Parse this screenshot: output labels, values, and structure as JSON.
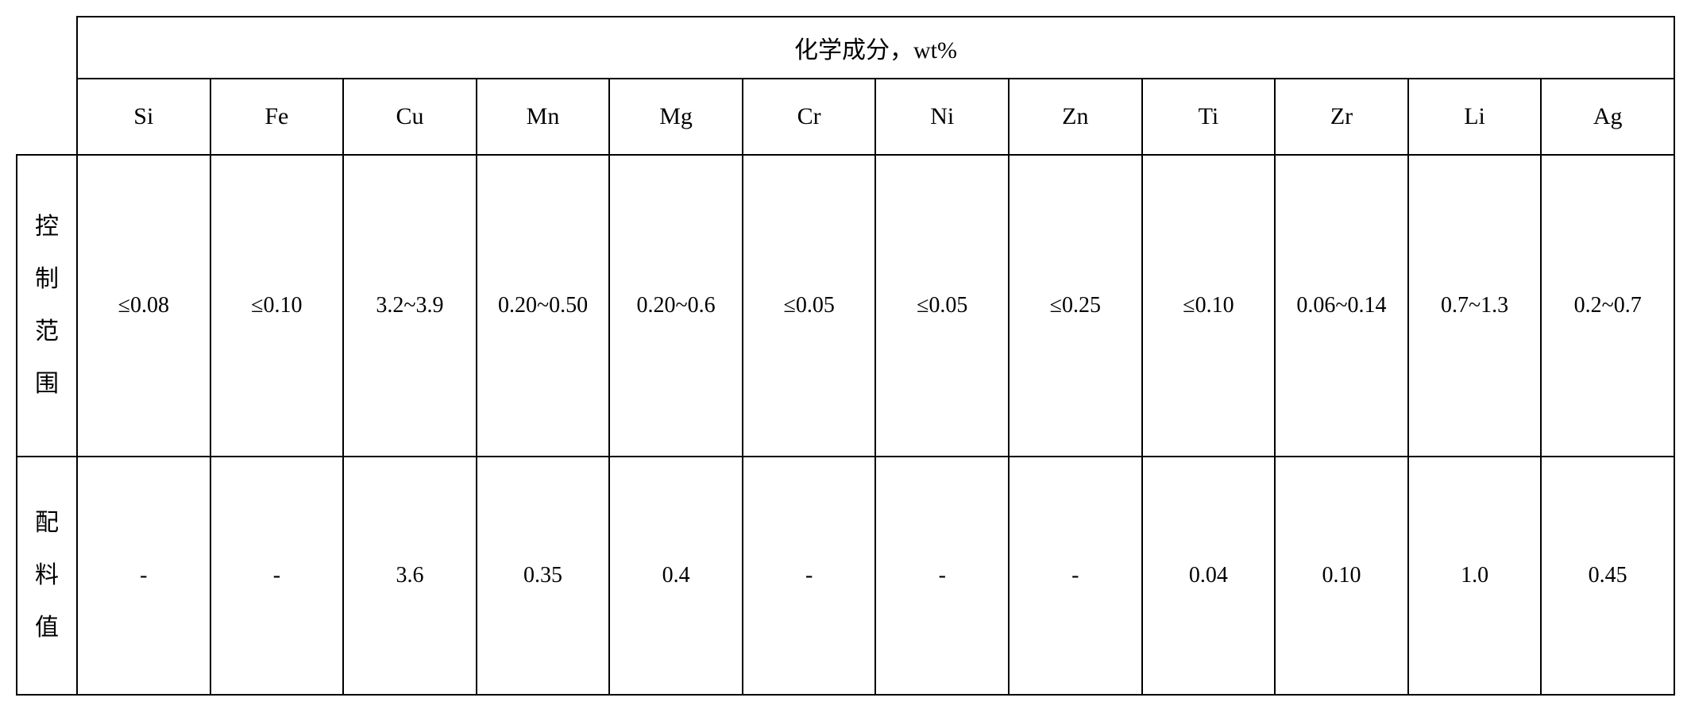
{
  "table": {
    "title": "化学成分，wt%",
    "columns": [
      "Si",
      "Fe",
      "Cu",
      "Mn",
      "Mg",
      "Cr",
      "Ni",
      "Zn",
      "Ti",
      "Zr",
      "Li",
      "Ag"
    ],
    "rows": [
      {
        "label_chars": [
          "控",
          "制",
          "范",
          "围"
        ],
        "values": [
          "≤0.08",
          "≤0.10",
          "3.2~3.9",
          "0.20~0.50",
          "0.20~0.6",
          "≤0.05",
          "≤0.05",
          "≤0.25",
          "≤0.10",
          "0.06~0.14",
          "0.7~1.3",
          "0.2~0.7"
        ]
      },
      {
        "label_chars": [
          "配",
          "料",
          "值"
        ],
        "values": [
          "-",
          "-",
          "3.6",
          "0.35",
          "0.4",
          "-",
          "-",
          "-",
          "0.04",
          "0.10",
          "1.0",
          "0.45"
        ]
      }
    ],
    "styling": {
      "border_color": "#000000",
      "border_width": 2,
      "background_color": "#ffffff",
      "text_color": "#000000",
      "header_fontsize": 30,
      "cell_fontsize": 28,
      "font_family_cjk": "SimSun",
      "font_family_latin": "Times New Roman",
      "column_widths": {
        "label": 76,
        "Si": 130,
        "Fe": 128,
        "Cu": 158,
        "Mn": 198,
        "Mg": 188,
        "Cr": 132,
        "Ni": 134,
        "Zn": 132,
        "Ti": 132,
        "Zr": 198,
        "Li": 160,
        "Ag": 160
      },
      "row_heights": {
        "title": 78,
        "columns": 96,
        "data_row_0": 380,
        "data_row_1": 300
      }
    }
  }
}
